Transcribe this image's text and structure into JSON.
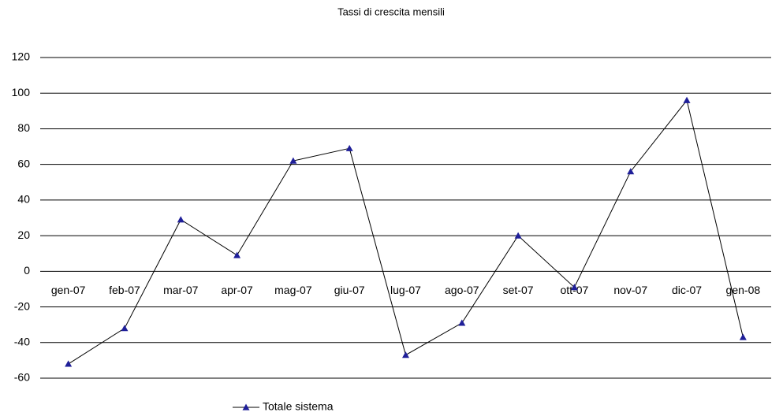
{
  "chart_data": {
    "type": "line",
    "title": "Tassi di crescita mensili",
    "categories": [
      "gen-07",
      "feb-07",
      "mar-07",
      "apr-07",
      "mag-07",
      "giu-07",
      "lug-07",
      "ago-07",
      "set-07",
      "ott-07",
      "nov-07",
      "dic-07",
      "gen-08"
    ],
    "series": [
      {
        "name": "Totale sistema",
        "color": "#1f1f99",
        "line_color": "#000000",
        "values": [
          -52,
          -32,
          29,
          9,
          62,
          69,
          -47,
          -29,
          20,
          -9,
          56,
          96,
          -37
        ]
      }
    ],
    "ylim": [
      -60,
      120
    ],
    "yticks": [
      -60,
      -40,
      -20,
      0,
      20,
      40,
      60,
      80,
      100,
      120
    ],
    "grid": true,
    "legend": "bottom"
  }
}
